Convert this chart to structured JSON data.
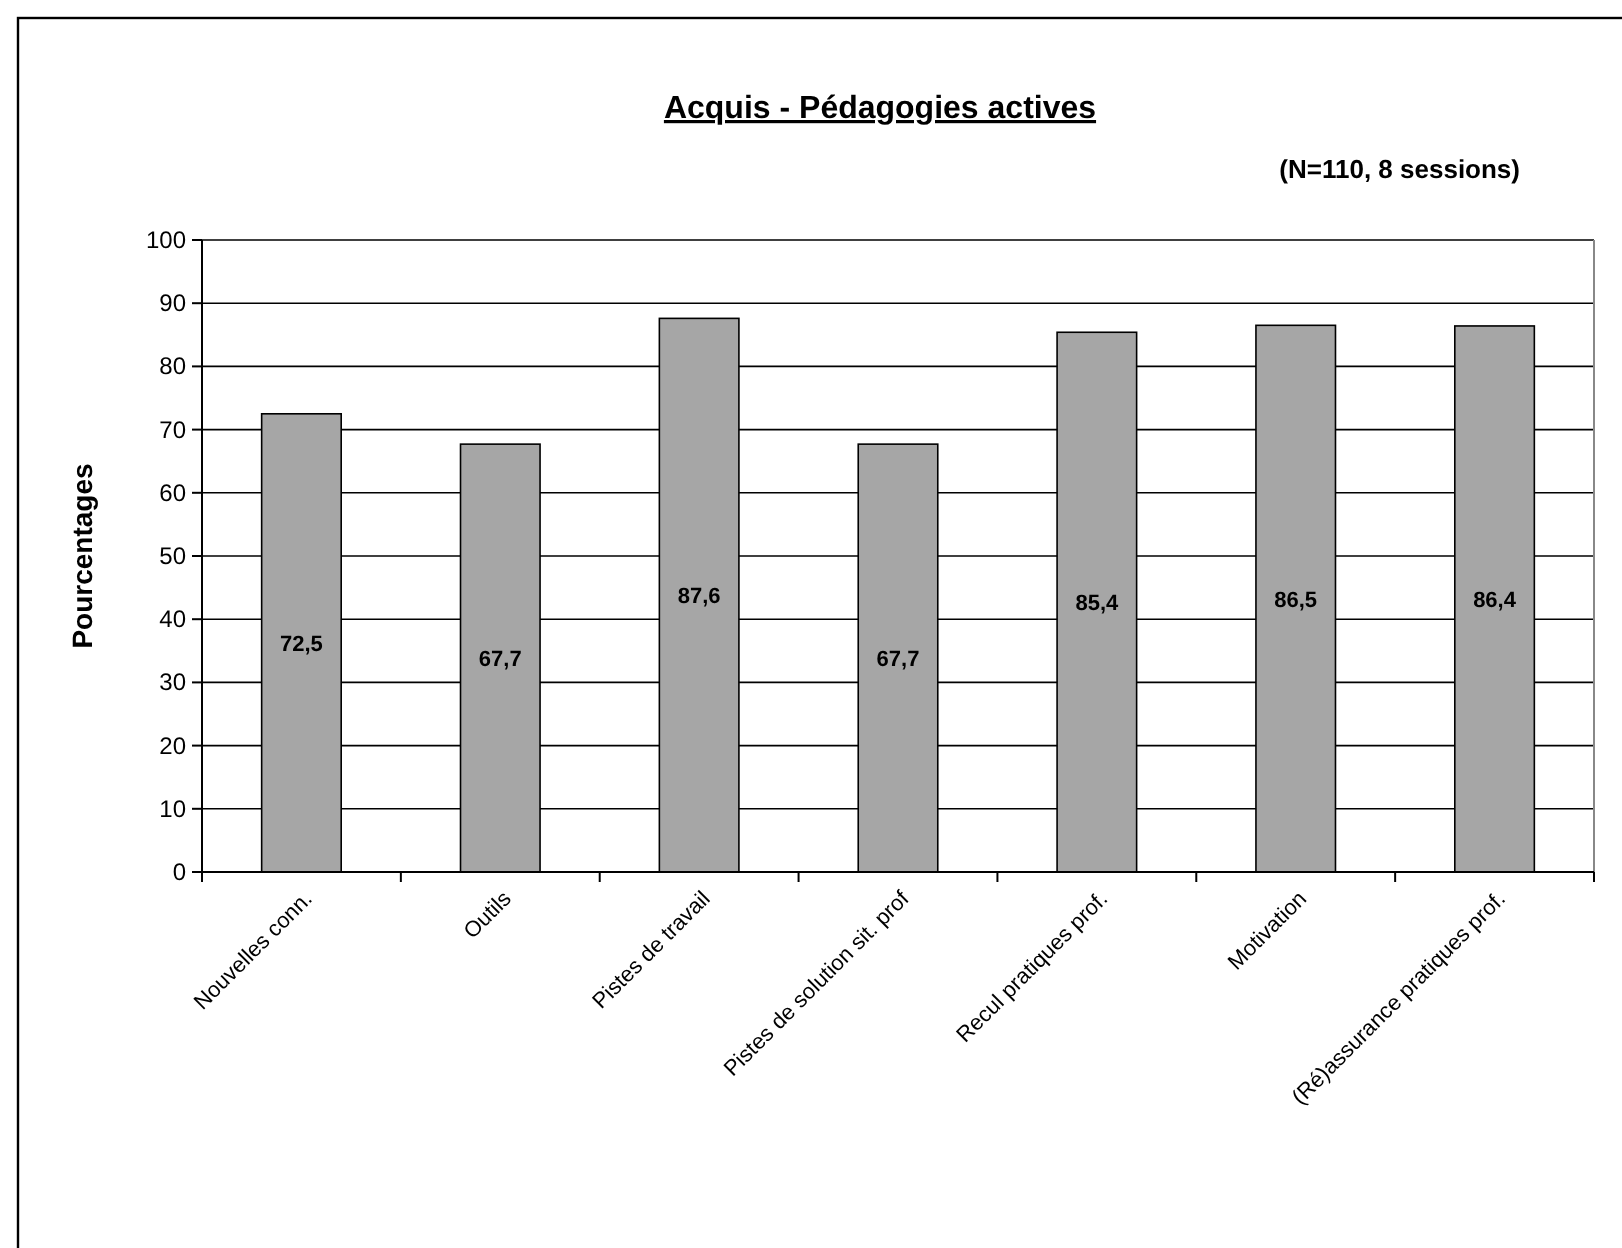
{
  "chart_data": {
    "type": "bar",
    "title": "Acquis - Pédagogies actives",
    "subtitle": "(N=110, 8 sessions)",
    "ylabel": "Pourcentages",
    "categories": [
      "Nouvelles conn.",
      "Outils",
      "Pistes de travail",
      "Pistes de solution sit. prof",
      "Recul pratiques prof.",
      "Motivation",
      "(Ré)assurance pratiques prof."
    ],
    "values": [
      72.5,
      67.7,
      87.6,
      67.7,
      85.4,
      86.5,
      86.4
    ],
    "value_labels": [
      "72,5",
      "67,7",
      "87,6",
      "67,7",
      "85,4",
      "86,5",
      "86,4"
    ],
    "color": "#a6a6a6",
    "ylim": [
      0,
      100
    ],
    "yticks": [
      0,
      10,
      20,
      30,
      40,
      50,
      60,
      70,
      80,
      90,
      100
    ],
    "grid": "y"
  }
}
